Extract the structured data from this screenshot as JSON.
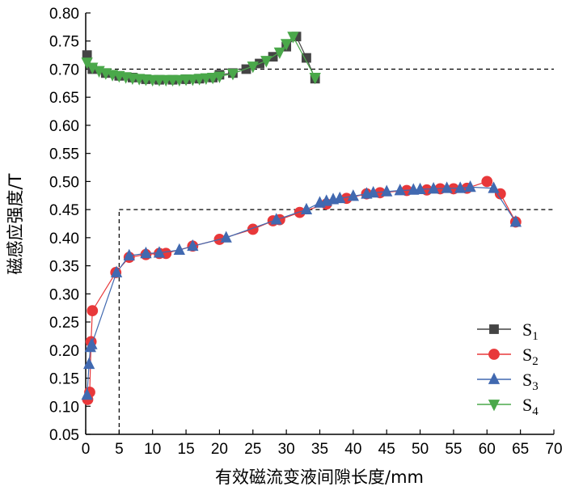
{
  "chart_data": {
    "type": "line",
    "xlabel": "有效磁流变液间隙长度/mm",
    "ylabel": "磁感应强度/T",
    "xlim": [
      0,
      70
    ],
    "ylim": [
      0.05,
      0.8
    ],
    "xticks": [
      0,
      5,
      10,
      15,
      20,
      25,
      30,
      35,
      40,
      45,
      50,
      55,
      60,
      65,
      70
    ],
    "xtick_labels": [
      "0",
      "5",
      "10",
      "15",
      "20",
      "25",
      "30",
      "35",
      "40",
      "45",
      "50",
      "55",
      "60",
      "65",
      "70"
    ],
    "yticks": [
      0.05,
      0.1,
      0.15,
      0.2,
      0.25,
      0.3,
      0.35,
      0.4,
      0.45,
      0.5,
      0.55,
      0.6,
      0.65,
      0.7,
      0.75,
      0.8
    ],
    "ytick_labels": [
      "0.05",
      "0.10",
      "0.15",
      "0.20",
      "0.25",
      "0.30",
      "0.35",
      "0.40",
      "0.45",
      "0.50",
      "0.55",
      "0.60",
      "0.65",
      "0.70",
      "0.75",
      "0.80"
    ],
    "grid": false,
    "legend": "bottom-right",
    "reference_lines": [
      {
        "orientation": "horizontal",
        "y": 0.7,
        "x_from": 0,
        "x_to": 70
      },
      {
        "orientation": "horizontal",
        "y": 0.45,
        "x_from": 5,
        "x_to": 70
      },
      {
        "orientation": "vertical",
        "x": 5,
        "y_from": 0.05,
        "y_to": 0.45
      }
    ],
    "series": [
      {
        "name": "S",
        "subscript": "1",
        "color": "#444444",
        "marker": "square",
        "x": [
          0.2,
          1,
          3,
          5,
          7,
          9,
          11,
          13,
          15,
          17,
          19,
          20,
          22,
          24,
          26,
          28,
          30,
          31.5,
          33,
          34.3
        ],
        "y": [
          0.725,
          0.7,
          0.693,
          0.688,
          0.685,
          0.682,
          0.681,
          0.681,
          0.682,
          0.683,
          0.685,
          0.69,
          0.693,
          0.7,
          0.71,
          0.722,
          0.74,
          0.758,
          0.72,
          0.683
        ]
      },
      {
        "name": "S",
        "subscript": "2",
        "color": "#e8383a",
        "marker": "circle",
        "x": [
          0.3,
          0.6,
          0.8,
          1.0,
          4.5,
          6.5,
          9,
          11,
          12,
          16,
          20,
          25,
          28,
          29,
          32,
          36,
          39,
          42,
          44,
          48,
          51,
          53,
          55,
          57,
          60,
          62,
          64.3
        ],
        "y": [
          0.112,
          0.125,
          0.215,
          0.27,
          0.338,
          0.365,
          0.37,
          0.372,
          0.372,
          0.385,
          0.397,
          0.415,
          0.43,
          0.432,
          0.445,
          0.46,
          0.47,
          0.478,
          0.48,
          0.484,
          0.485,
          0.487,
          0.487,
          0.488,
          0.5,
          0.478,
          0.428
        ]
      },
      {
        "name": "S",
        "subscript": "3",
        "color": "#4169b0",
        "marker": "triangle-up",
        "x": [
          0.2,
          0.5,
          0.7,
          0.9,
          4.6,
          6.5,
          9,
          11,
          14,
          16,
          21,
          28.5,
          33,
          35,
          36,
          37,
          38,
          40,
          42,
          43,
          45,
          47,
          49,
          50,
          52,
          54,
          56,
          57.5,
          61,
          64.3
        ],
        "y": [
          0.12,
          0.175,
          0.205,
          0.21,
          0.338,
          0.368,
          0.372,
          0.373,
          0.378,
          0.385,
          0.4,
          0.432,
          0.45,
          0.462,
          0.465,
          0.468,
          0.47,
          0.474,
          0.478,
          0.48,
          0.482,
          0.484,
          0.485,
          0.486,
          0.487,
          0.488,
          0.488,
          0.49,
          0.488,
          0.428
        ]
      },
      {
        "name": "S",
        "subscript": "4",
        "color": "#4aa84a",
        "marker": "triangle-down",
        "x": [
          0.2,
          1,
          2,
          3,
          4,
          5,
          6,
          7,
          8,
          9,
          10,
          11,
          12,
          13,
          14,
          15,
          16,
          17,
          18,
          19,
          20,
          22,
          25,
          27,
          29,
          30,
          31,
          34.3
        ],
        "y": [
          0.712,
          0.703,
          0.697,
          0.693,
          0.69,
          0.688,
          0.686,
          0.684,
          0.683,
          0.682,
          0.681,
          0.681,
          0.681,
          0.681,
          0.681,
          0.682,
          0.682,
          0.683,
          0.684,
          0.685,
          0.687,
          0.692,
          0.705,
          0.715,
          0.73,
          0.745,
          0.758,
          0.685
        ]
      }
    ]
  }
}
